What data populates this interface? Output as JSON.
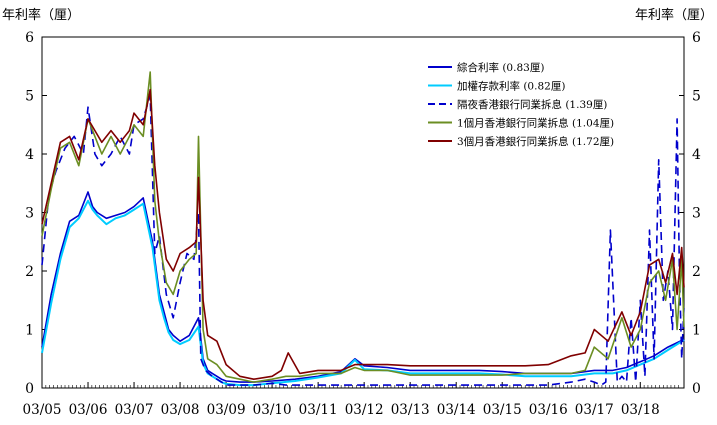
{
  "chart_data": {
    "type": "line",
    "ylabel_left": "年利率（厘）",
    "ylabel_right": "年利率（厘）",
    "ylim": [
      0,
      6
    ],
    "yticks": [
      0,
      1,
      2,
      3,
      4,
      5,
      6
    ],
    "xlim": [
      2005.0,
      2018.95
    ],
    "x_tick_labels": [
      "03/05",
      "03/06",
      "03/07",
      "03/08",
      "03/09",
      "03/10",
      "03/11",
      "03/12",
      "03/13",
      "03/14",
      "03/15",
      "03/16",
      "03/17",
      "03/18"
    ],
    "grid": false,
    "legend_position": "top-right",
    "series": [
      {
        "name": "綜合利率 (0.83厘)",
        "color": "#0000cc",
        "dash": "solid",
        "x": [
          2005.0,
          2005.2,
          2005.4,
          2005.6,
          2005.8,
          2006.0,
          2006.1,
          2006.2,
          2006.4,
          2006.6,
          2006.8,
          2007.0,
          2007.2,
          2007.4,
          2007.55,
          2007.65,
          2007.75,
          2007.85,
          2008.0,
          2008.2,
          2008.4,
          2008.5,
          2008.6,
          2008.7,
          2008.8,
          2008.9,
          2009.0,
          2009.3,
          2009.6,
          2010.0,
          2010.5,
          2011.0,
          2011.5,
          2011.8,
          2012.0,
          2012.5,
          2013.0,
          2013.5,
          2014.0,
          2014.5,
          2015.0,
          2015.5,
          2016.0,
          2016.5,
          2017.0,
          2017.4,
          2017.7,
          2018.0,
          2018.3,
          2018.6,
          2018.95
        ],
        "values": [
          0.7,
          1.6,
          2.3,
          2.85,
          2.95,
          3.35,
          3.1,
          3.0,
          2.9,
          2.95,
          3.0,
          3.1,
          3.25,
          2.5,
          1.6,
          1.3,
          1.0,
          0.9,
          0.8,
          0.9,
          1.2,
          0.5,
          0.3,
          0.25,
          0.2,
          0.15,
          0.12,
          0.1,
          0.1,
          0.12,
          0.15,
          0.2,
          0.28,
          0.5,
          0.38,
          0.35,
          0.3,
          0.3,
          0.3,
          0.3,
          0.28,
          0.25,
          0.25,
          0.25,
          0.3,
          0.3,
          0.35,
          0.45,
          0.55,
          0.7,
          0.83
        ]
      },
      {
        "name": "加權存款利率 (0.82厘)",
        "color": "#00ccff",
        "dash": "solid",
        "x": [
          2005.0,
          2005.2,
          2005.4,
          2005.6,
          2005.8,
          2006.0,
          2006.1,
          2006.2,
          2006.4,
          2006.6,
          2006.8,
          2007.0,
          2007.2,
          2007.4,
          2007.55,
          2007.65,
          2007.75,
          2007.85,
          2008.0,
          2008.2,
          2008.4,
          2008.5,
          2008.6,
          2008.7,
          2008.8,
          2008.9,
          2009.0,
          2009.3,
          2009.6,
          2010.0,
          2010.5,
          2011.0,
          2011.5,
          2011.8,
          2012.0,
          2012.5,
          2013.0,
          2013.5,
          2014.0,
          2014.5,
          2015.0,
          2015.5,
          2016.0,
          2016.5,
          2017.0,
          2017.4,
          2017.7,
          2018.0,
          2018.3,
          2018.6,
          2018.95
        ],
        "values": [
          0.6,
          1.45,
          2.2,
          2.75,
          2.9,
          3.2,
          3.05,
          2.95,
          2.8,
          2.9,
          2.95,
          3.05,
          3.15,
          2.4,
          1.5,
          1.2,
          0.95,
          0.82,
          0.75,
          0.82,
          1.05,
          0.42,
          0.25,
          0.2,
          0.15,
          0.1,
          0.07,
          0.05,
          0.05,
          0.08,
          0.12,
          0.18,
          0.25,
          0.48,
          0.32,
          0.3,
          0.25,
          0.25,
          0.25,
          0.25,
          0.23,
          0.2,
          0.2,
          0.2,
          0.25,
          0.25,
          0.3,
          0.4,
          0.5,
          0.65,
          0.82
        ]
      },
      {
        "name": "隔夜香港銀行同業拆息 (1.39厘)",
        "color": "#0000cc",
        "dash": "dashed",
        "x": [
          2005.0,
          2005.15,
          2005.3,
          2005.5,
          2005.7,
          2005.9,
          2006.0,
          2006.15,
          2006.3,
          2006.5,
          2006.7,
          2006.9,
          2007.0,
          2007.2,
          2007.35,
          2007.45,
          2007.55,
          2007.7,
          2007.85,
          2008.0,
          2008.15,
          2008.3,
          2008.4,
          2008.45,
          2008.55,
          2008.7,
          2008.9,
          2009.0,
          2009.3,
          2009.6,
          2010.0,
          2010.3,
          2010.6,
          2011.0,
          2011.5,
          2011.8,
          2012.0,
          2012.5,
          2013.0,
          2013.5,
          2014.0,
          2014.5,
          2015.0,
          2015.5,
          2016.0,
          2016.5,
          2016.8,
          2017.0,
          2017.15,
          2017.25,
          2017.35,
          2017.5,
          2017.6,
          2017.7,
          2017.8,
          2017.9,
          2018.0,
          2018.1,
          2018.2,
          2018.3,
          2018.4,
          2018.5,
          2018.6,
          2018.7,
          2018.8,
          2018.85,
          2018.9,
          2018.95
        ],
        "values": [
          2.1,
          3.3,
          3.7,
          4.1,
          4.3,
          4.0,
          4.8,
          4.0,
          3.8,
          4.0,
          4.3,
          4.0,
          4.5,
          4.6,
          5.0,
          2.3,
          2.6,
          1.6,
          1.2,
          1.8,
          2.3,
          2.2,
          3.0,
          0.5,
          0.3,
          0.2,
          0.1,
          0.05,
          0.05,
          0.05,
          0.08,
          0.05,
          0.05,
          0.05,
          0.05,
          0.05,
          0.05,
          0.05,
          0.05,
          0.05,
          0.05,
          0.05,
          0.05,
          0.05,
          0.05,
          0.1,
          0.15,
          0.1,
          0.05,
          0.1,
          2.7,
          0.1,
          0.2,
          0.1,
          1.2,
          0.1,
          1.5,
          0.2,
          2.7,
          0.5,
          3.9,
          1.5,
          2.0,
          1.0,
          4.6,
          2.0,
          0.5,
          1.39
        ]
      },
      {
        "name": "1個月香港銀行同業拆息 (1.04厘)",
        "color": "#6b8e23",
        "dash": "solid",
        "x": [
          2005.0,
          2005.2,
          2005.4,
          2005.6,
          2005.8,
          2006.0,
          2006.15,
          2006.3,
          2006.5,
          2006.7,
          2006.9,
          2007.0,
          2007.2,
          2007.35,
          2007.45,
          2007.55,
          2007.7,
          2007.85,
          2008.0,
          2008.2,
          2008.35,
          2008.4,
          2008.5,
          2008.6,
          2008.8,
          2009.0,
          2009.3,
          2009.6,
          2010.0,
          2010.3,
          2010.6,
          2011.0,
          2011.5,
          2011.8,
          2012.0,
          2012.5,
          2013.0,
          2013.5,
          2014.0,
          2014.5,
          2015.0,
          2015.5,
          2016.0,
          2016.5,
          2016.8,
          2017.0,
          2017.3,
          2017.6,
          2017.8,
          2018.0,
          2018.2,
          2018.4,
          2018.55,
          2018.7,
          2018.8,
          2018.9,
          2018.95
        ],
        "values": [
          2.6,
          3.4,
          4.1,
          4.2,
          3.8,
          4.6,
          4.3,
          4.0,
          4.3,
          4.0,
          4.3,
          4.5,
          4.3,
          5.4,
          3.2,
          2.5,
          1.8,
          1.6,
          2.0,
          2.2,
          2.3,
          4.3,
          1.0,
          0.5,
          0.4,
          0.2,
          0.15,
          0.1,
          0.15,
          0.2,
          0.2,
          0.25,
          0.25,
          0.35,
          0.3,
          0.3,
          0.22,
          0.22,
          0.22,
          0.22,
          0.22,
          0.25,
          0.25,
          0.25,
          0.3,
          0.7,
          0.5,
          1.2,
          0.7,
          1.0,
          1.8,
          2.0,
          1.5,
          2.2,
          1.0,
          2.2,
          1.04
        ]
      },
      {
        "name": "3個月香港銀行同業拆息 (1.72厘)",
        "color": "#800000",
        "dash": "solid",
        "x": [
          2005.0,
          2005.2,
          2005.4,
          2005.6,
          2005.8,
          2006.0,
          2006.15,
          2006.3,
          2006.5,
          2006.7,
          2006.9,
          2007.0,
          2007.2,
          2007.35,
          2007.45,
          2007.55,
          2007.7,
          2007.85,
          2008.0,
          2008.2,
          2008.35,
          2008.4,
          2008.5,
          2008.6,
          2008.8,
          2009.0,
          2009.3,
          2009.6,
          2010.0,
          2010.2,
          2010.35,
          2010.6,
          2011.0,
          2011.5,
          2011.8,
          2012.0,
          2012.5,
          2013.0,
          2013.5,
          2014.0,
          2014.5,
          2015.0,
          2015.5,
          2016.0,
          2016.5,
          2016.8,
          2017.0,
          2017.3,
          2017.6,
          2017.8,
          2018.0,
          2018.2,
          2018.4,
          2018.55,
          2018.7,
          2018.8,
          2018.9,
          2018.95
        ],
        "values": [
          2.8,
          3.5,
          4.2,
          4.3,
          3.9,
          4.6,
          4.4,
          4.2,
          4.4,
          4.2,
          4.4,
          4.7,
          4.5,
          5.1,
          3.8,
          3.0,
          2.2,
          2.0,
          2.3,
          2.4,
          2.5,
          3.6,
          1.5,
          0.9,
          0.8,
          0.4,
          0.2,
          0.15,
          0.2,
          0.3,
          0.6,
          0.25,
          0.3,
          0.3,
          0.4,
          0.4,
          0.4,
          0.38,
          0.38,
          0.38,
          0.38,
          0.38,
          0.38,
          0.4,
          0.55,
          0.6,
          1.0,
          0.8,
          1.3,
          0.9,
          1.3,
          2.1,
          2.2,
          1.8,
          2.3,
          1.6,
          2.4,
          1.72
        ]
      }
    ]
  }
}
